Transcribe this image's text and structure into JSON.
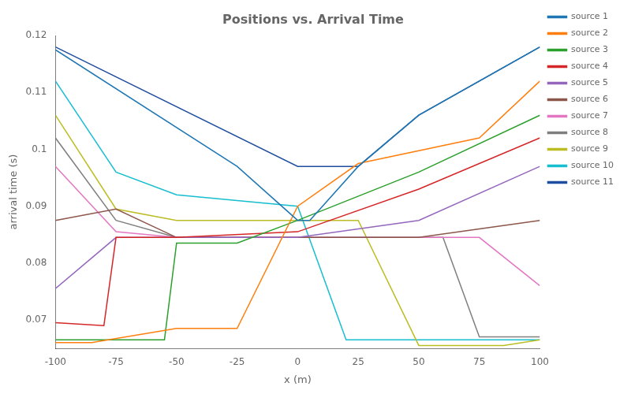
{
  "chart_data": {
    "type": "line",
    "title": "Positions vs. Arrival Time",
    "xlabel": "x (m)",
    "ylabel": "arrival time (s)",
    "xlim": [
      -100,
      100
    ],
    "ylim": [
      0.065,
      0.12
    ],
    "xticks": [
      -100,
      -75,
      -50,
      -25,
      0,
      25,
      50,
      75,
      100
    ],
    "yticks": [
      0.07,
      0.08,
      0.09,
      0.1,
      0.11,
      0.12
    ],
    "grid": false,
    "legend": "upper right",
    "series": [
      {
        "name": "source 1",
        "color": "#1f77b4",
        "x": [
          -100,
          -25,
          0,
          5,
          25,
          50,
          100
        ],
        "values": [
          0.1175,
          0.097,
          0.0875,
          0.0875,
          0.097,
          0.106,
          0.118
        ]
      },
      {
        "name": "source 2",
        "color": "#ff7f0e",
        "x": [
          -100,
          -85,
          -50,
          -25,
          0,
          25,
          75,
          100
        ],
        "values": [
          0.066,
          0.066,
          0.0685,
          0.0685,
          0.09,
          0.0975,
          0.102,
          0.112
        ]
      },
      {
        "name": "source 3",
        "color": "#2ca02c",
        "x": [
          -100,
          -85,
          -55,
          -50,
          -25,
          0,
          50,
          100
        ],
        "values": [
          0.0665,
          0.0665,
          0.0665,
          0.0835,
          0.0835,
          0.0875,
          0.096,
          0.106
        ]
      },
      {
        "name": "source 4",
        "color": "#d62728",
        "x": [
          -100,
          -80,
          -75,
          -50,
          0,
          50,
          100
        ],
        "values": [
          0.0695,
          0.069,
          0.0845,
          0.0845,
          0.0855,
          0.093,
          0.102
        ]
      },
      {
        "name": "source 5",
        "color": "#9467bd",
        "x": [
          -100,
          -75,
          -50,
          0,
          50,
          100
        ],
        "values": [
          0.0755,
          0.0845,
          0.0845,
          0.0845,
          0.0875,
          0.097
        ]
      },
      {
        "name": "source 6",
        "color": "#8c564b",
        "x": [
          -100,
          -75,
          -50,
          0,
          50,
          100
        ],
        "values": [
          0.0875,
          0.0895,
          0.0845,
          0.0845,
          0.0845,
          0.0875
        ]
      },
      {
        "name": "source 7",
        "color": "#e377c2",
        "x": [
          -100,
          -75,
          -50,
          0,
          50,
          75,
          100
        ],
        "values": [
          0.097,
          0.0855,
          0.0845,
          0.0845,
          0.0845,
          0.0845,
          0.076
        ]
      },
      {
        "name": "source 8",
        "color": "#7f7f7f",
        "x": [
          -100,
          -75,
          -50,
          0,
          60,
          75,
          100
        ],
        "values": [
          0.102,
          0.0875,
          0.0845,
          0.0845,
          0.0845,
          0.067,
          0.067
        ]
      },
      {
        "name": "source 9",
        "color": "#bcbd22",
        "x": [
          -100,
          -75,
          -50,
          0,
          25,
          50,
          85,
          100
        ],
        "values": [
          0.106,
          0.0895,
          0.0875,
          0.0875,
          0.0875,
          0.0655,
          0.0655,
          0.0665
        ]
      },
      {
        "name": "source 10",
        "color": "#17becf",
        "x": [
          -100,
          -75,
          -50,
          -25,
          0,
          20,
          65,
          100
        ],
        "values": [
          0.112,
          0.096,
          0.092,
          0.091,
          0.09,
          0.0665,
          0.0665,
          0.0665
        ]
      },
      {
        "name": "source 11",
        "color": "#1f4e9f",
        "x": [
          -100,
          0,
          5,
          25,
          50,
          100
        ],
        "values": [
          0.118,
          0.097,
          0.097,
          0.097,
          0.106,
          0.118
        ]
      }
    ]
  }
}
